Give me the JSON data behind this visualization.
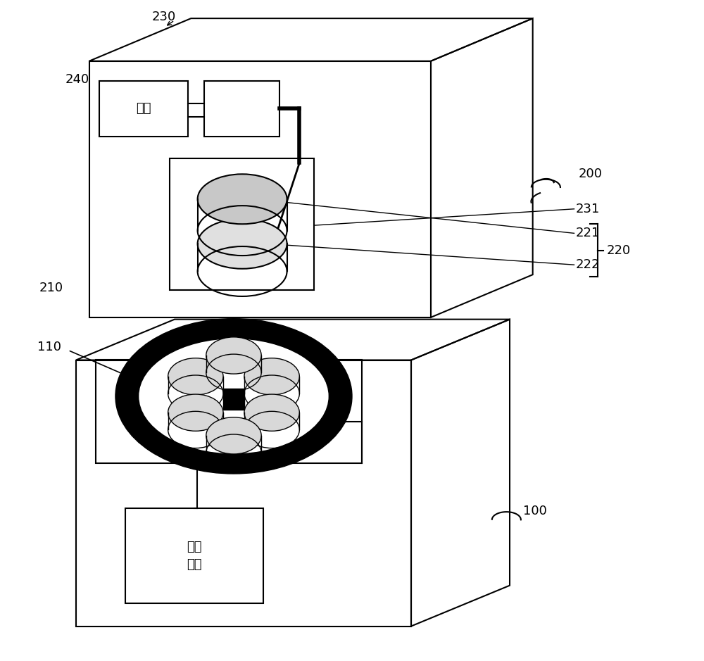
{
  "bg_color": "#ffffff",
  "line_color": "#000000",
  "fig_width": 10.0,
  "fig_height": 9.39,
  "dianyan_text": "电源",
  "zhikong_text": "控制\n电路"
}
